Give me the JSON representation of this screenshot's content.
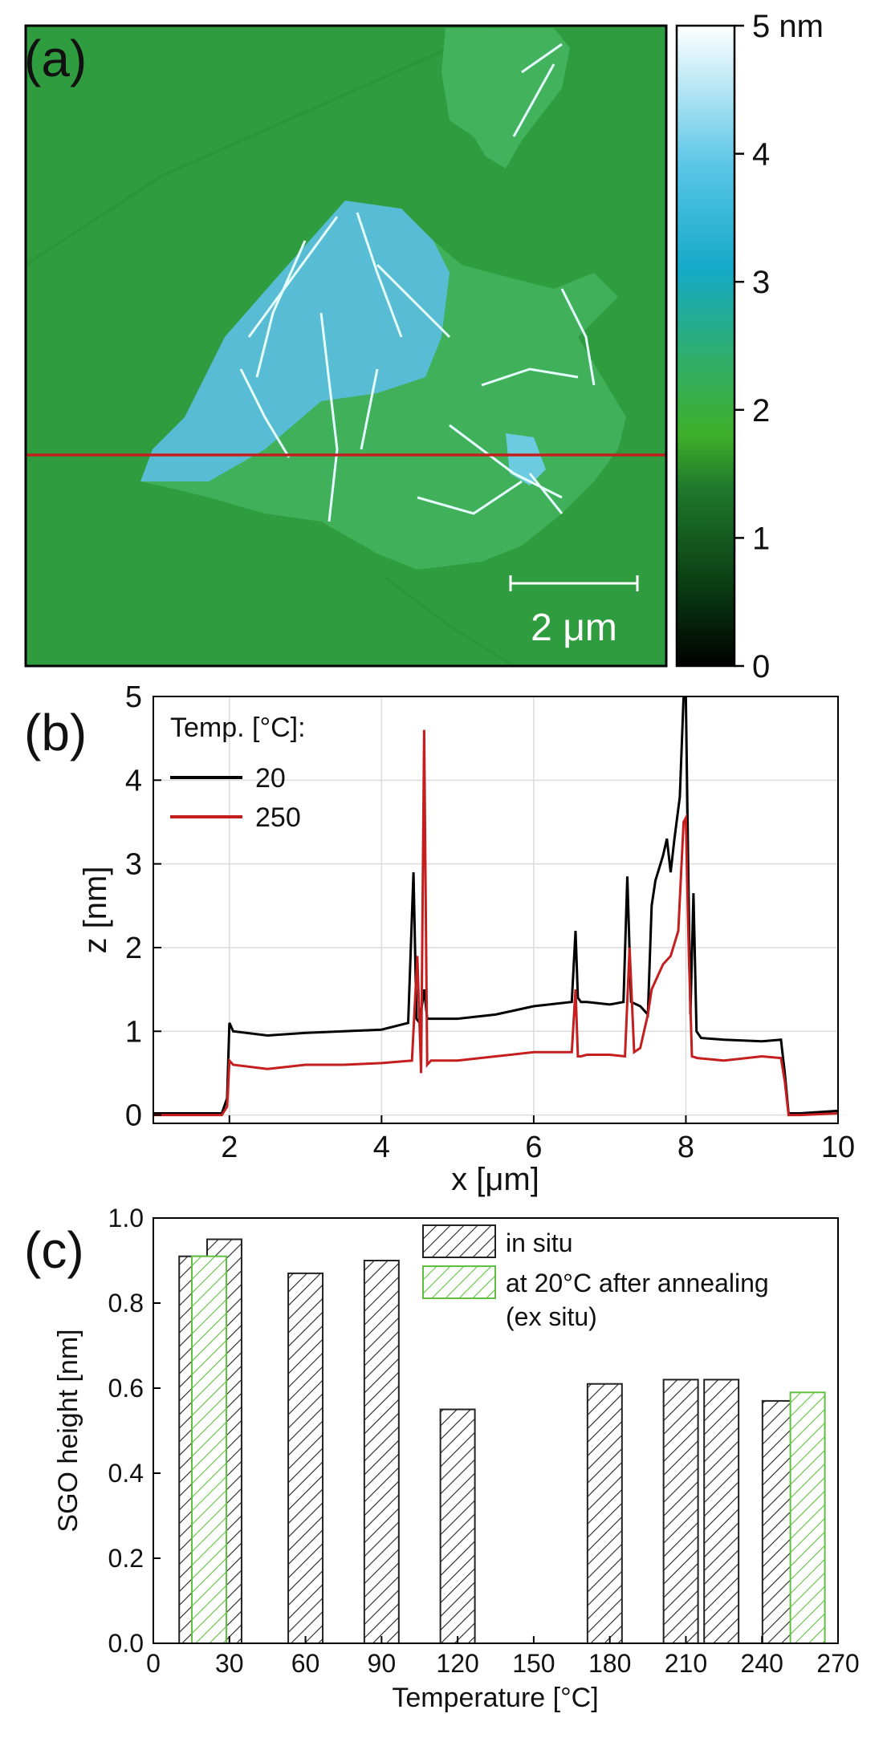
{
  "panels": {
    "a": "(a)",
    "b": "(b)",
    "c": "(c)"
  },
  "afm": {
    "colorbar_ticks": [
      "0",
      "1",
      "2",
      "3",
      "4",
      "5 nm"
    ],
    "scalebar_label": "2 μm",
    "colors": {
      "substrate": "#2fa043",
      "flake_low": "#3fb25a",
      "flake_high": "#5ac0dc",
      "wrinkle": "#e8ffff",
      "profile_line": "#c41e1e"
    }
  },
  "chart_data": [
    {
      "type": "line",
      "xlabel": "x [μm]",
      "ylabel": "z [nm]",
      "xlim": [
        1,
        10
      ],
      "ylim": [
        -0.1,
        5
      ],
      "xticks": [
        2,
        4,
        6,
        8,
        10
      ],
      "yticks": [
        0,
        1,
        2,
        3,
        4,
        5
      ],
      "grid": true,
      "legend_title": "Temp. [°C]:",
      "legend_position": "top-left",
      "series": [
        {
          "name": "20",
          "color": "#000000",
          "x": [
            1.0,
            1.9,
            1.97,
            2.0,
            2.05,
            2.5,
            3.0,
            3.5,
            4.0,
            4.35,
            4.42,
            4.46,
            4.5,
            4.56,
            4.6,
            5.0,
            5.5,
            6.0,
            6.5,
            6.55,
            6.58,
            6.62,
            6.7,
            7.0,
            7.18,
            7.23,
            7.28,
            7.4,
            7.5,
            7.55,
            7.6,
            7.7,
            7.75,
            7.8,
            7.85,
            7.92,
            7.97,
            8.0,
            8.03,
            8.06,
            8.1,
            8.14,
            8.2,
            8.5,
            9.0,
            9.25,
            9.3,
            9.35,
            9.5,
            10.0
          ],
          "y": [
            0.02,
            0.02,
            0.2,
            1.1,
            1.0,
            0.95,
            0.98,
            1.0,
            1.02,
            1.1,
            2.9,
            1.15,
            1.1,
            1.5,
            1.15,
            1.15,
            1.2,
            1.3,
            1.35,
            2.2,
            1.4,
            1.35,
            1.35,
            1.32,
            1.35,
            2.85,
            1.35,
            1.3,
            1.2,
            2.5,
            2.8,
            3.1,
            3.3,
            2.9,
            3.3,
            3.8,
            5.0,
            5.0,
            3.0,
            1.2,
            2.65,
            1.0,
            0.92,
            0.9,
            0.88,
            0.9,
            0.5,
            0.02,
            0.02,
            0.05
          ]
        },
        {
          "name": "250",
          "color": "#c41e1e",
          "x": [
            1.0,
            1.9,
            1.97,
            2.0,
            2.05,
            2.5,
            3.0,
            3.5,
            4.0,
            4.4,
            4.47,
            4.52,
            4.56,
            4.6,
            4.65,
            5.0,
            5.5,
            6.0,
            6.5,
            6.55,
            6.58,
            6.62,
            6.7,
            7.0,
            7.2,
            7.26,
            7.32,
            7.4,
            7.5,
            7.55,
            7.6,
            7.7,
            7.8,
            7.9,
            7.97,
            8.0,
            8.04,
            8.08,
            8.15,
            8.5,
            9.0,
            9.25,
            9.3,
            9.35,
            9.5,
            10.0
          ],
          "y": [
            0.0,
            0.0,
            0.1,
            0.65,
            0.6,
            0.55,
            0.6,
            0.6,
            0.62,
            0.65,
            1.9,
            0.5,
            4.6,
            0.6,
            0.65,
            0.65,
            0.7,
            0.75,
            0.75,
            1.5,
            0.7,
            0.7,
            0.72,
            0.72,
            0.7,
            2.0,
            0.75,
            0.8,
            1.2,
            1.5,
            1.6,
            1.8,
            1.9,
            2.2,
            3.5,
            3.55,
            1.9,
            0.7,
            0.68,
            0.65,
            0.7,
            0.68,
            0.4,
            0.0,
            0.0,
            0.02
          ]
        }
      ]
    },
    {
      "type": "bar",
      "xlabel": "Temperature [°C]",
      "ylabel": "SGO height [nm]",
      "xlim": [
        0,
        270
      ],
      "ylim": [
        0.0,
        1.0
      ],
      "xticks": [
        0,
        30,
        60,
        90,
        120,
        150,
        180,
        210,
        240,
        270
      ],
      "yticks": [
        0.0,
        0.2,
        0.4,
        0.6,
        0.8,
        1.0
      ],
      "legend_position": "top-right",
      "series": [
        {
          "name": "in situ",
          "color": "#222222",
          "x": [
            17,
            28,
            60,
            90,
            120,
            178,
            208,
            224,
            247
          ],
          "y": [
            0.91,
            0.95,
            0.87,
            0.9,
            0.55,
            0.61,
            0.62,
            0.62,
            0.57
          ]
        },
        {
          "name": "at 20°C after annealing",
          "name_line2": "(ex situ)",
          "color": "#5fc040",
          "x": [
            22,
            258
          ],
          "y": [
            0.91,
            0.59
          ]
        }
      ]
    }
  ]
}
